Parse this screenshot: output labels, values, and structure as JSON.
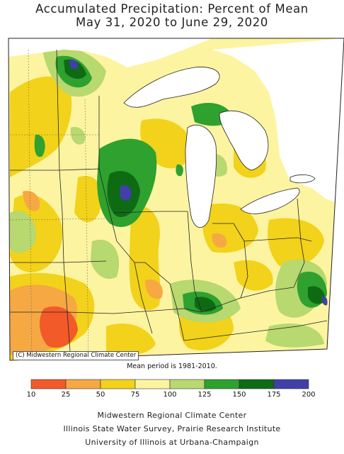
{
  "title": "Accumulated Precipitation: Percent of Mean",
  "subtitle": "May 31, 2020 to June 29, 2020",
  "credit": "(C) Midwestern Regional Climate Center",
  "mean_period": "Mean period is 1981-2010.",
  "legend": {
    "breaks": [
      "10",
      "25",
      "50",
      "75",
      "100",
      "125",
      "150",
      "175",
      "200"
    ],
    "colors": [
      "#f25a2a",
      "#f6a842",
      "#f2d21a",
      "#fcf4a0",
      "#b8d870",
      "#2ea12e",
      "#0e6b14",
      "#4040a8"
    ]
  },
  "footer": {
    "line1": "Midwestern Regional Climate Center",
    "line2": "Illinois State Water Survey, Prairie Research Institute",
    "line3": "University of Illinois at Urbana-Champaign"
  }
}
